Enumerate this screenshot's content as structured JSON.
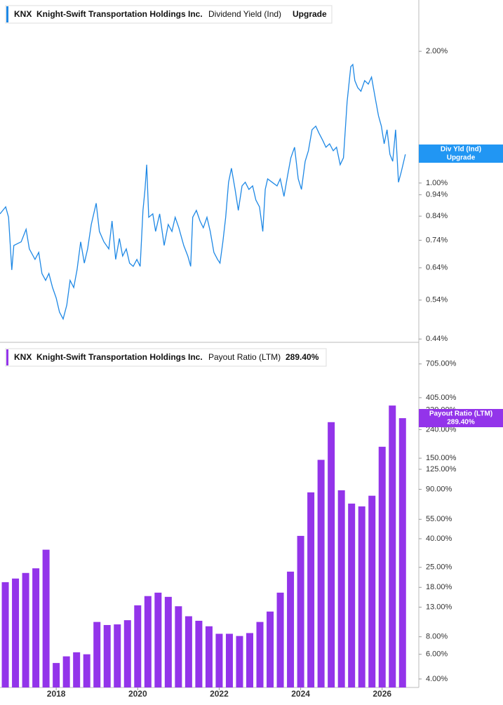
{
  "chart_data": [
    {
      "type": "line",
      "ticker": "KNX",
      "company": "Knight-Swift Transportation Holdings Inc.",
      "status": "Upgrade",
      "flag_label": "Div Yld (Ind)",
      "log_scale": true,
      "xlim": [
        2016.62,
        2026.9
      ],
      "ylim": [
        0.434,
        2.62
      ],
      "yticks": [
        {
          "value": 2,
          "label": "2.00%"
        },
        {
          "value": 1,
          "label": "1.00%"
        },
        {
          "value": 0.94,
          "label": "0.94%"
        },
        {
          "value": 0.84,
          "label": "0.84%"
        },
        {
          "value": 0.74,
          "label": "0.74%"
        },
        {
          "value": 0.64,
          "label": "0.64%"
        },
        {
          "value": 0.54,
          "label": "0.54%"
        },
        {
          "value": 0.44,
          "label": "0.44%"
        }
      ],
      "x": [
        2016.62,
        2016.76,
        2016.83,
        2016.91,
        2016.96,
        2017.14,
        2017.26,
        2017.34,
        2017.48,
        2017.57,
        2017.65,
        2017.74,
        2017.82,
        2017.91,
        2018.0,
        2018.08,
        2018.17,
        2018.26,
        2018.34,
        2018.43,
        2018.51,
        2018.6,
        2018.69,
        2018.77,
        2018.86,
        2018.98,
        2019.06,
        2019.17,
        2019.29,
        2019.37,
        2019.46,
        2019.55,
        2019.63,
        2019.72,
        2019.8,
        2019.89,
        2019.98,
        2020.06,
        2020.13,
        2020.18,
        2020.22,
        2020.27,
        2020.37,
        2020.44,
        2020.54,
        2020.65,
        2020.75,
        2020.84,
        2020.92,
        2021.01,
        2021.13,
        2021.23,
        2021.3,
        2021.35,
        2021.44,
        2021.53,
        2021.61,
        2021.7,
        2021.78,
        2021.87,
        2021.96,
        2022.02,
        2022.09,
        2022.16,
        2022.23,
        2022.3,
        2022.39,
        2022.47,
        2022.56,
        2022.64,
        2022.73,
        2022.82,
        2022.9,
        2022.99,
        2023.07,
        2023.13,
        2023.19,
        2023.3,
        2023.42,
        2023.5,
        2023.59,
        2023.68,
        2023.76,
        2023.85,
        2023.94,
        2024.02,
        2024.11,
        2024.19,
        2024.28,
        2024.37,
        2024.45,
        2024.54,
        2024.62,
        2024.71,
        2024.8,
        2024.88,
        2024.97,
        2025.05,
        2025.14,
        2025.23,
        2025.28,
        2025.33,
        2025.4,
        2025.48,
        2025.57,
        2025.66,
        2025.74,
        2025.83,
        2025.91,
        2025.98,
        2026.05,
        2026.12,
        2026.19,
        2026.26,
        2026.33,
        2026.4,
        2026.47,
        2026.53,
        2026.57
      ],
      "series": [
        {
          "name": "Dividend Yield (Ind)",
          "color": "#1e88e5",
          "values": [
            0.85,
            0.882,
            0.835,
            0.633,
            0.72,
            0.734,
            0.784,
            0.707,
            0.669,
            0.694,
            0.621,
            0.599,
            0.621,
            0.577,
            0.546,
            0.507,
            0.489,
            0.526,
            0.599,
            0.577,
            0.633,
            0.734,
            0.656,
            0.707,
            0.804,
            0.899,
            0.775,
            0.734,
            0.707,
            0.819,
            0.669,
            0.747,
            0.681,
            0.707,
            0.656,
            0.645,
            0.669,
            0.645,
            0.866,
            0.967,
            1.101,
            0.835,
            0.85,
            0.775,
            0.85,
            0.72,
            0.804,
            0.775,
            0.835,
            0.79,
            0.72,
            0.681,
            0.645,
            0.835,
            0.866,
            0.819,
            0.79,
            0.835,
            0.775,
            0.694,
            0.669,
            0.656,
            0.734,
            0.835,
            1.004,
            1.081,
            0.967,
            0.866,
            0.985,
            1.004,
            0.967,
            0.985,
            0.915,
            0.882,
            0.775,
            0.967,
            1.022,
            1.004,
            0.985,
            1.022,
            0.932,
            1.041,
            1.142,
            1.207,
            1.022,
            0.967,
            1.121,
            1.185,
            1.324,
            1.349,
            1.3,
            1.253,
            1.207,
            1.229,
            1.185,
            1.207,
            1.101,
            1.142,
            1.534,
            1.845,
            1.866,
            1.714,
            1.652,
            1.621,
            1.714,
            1.683,
            1.746,
            1.563,
            1.425,
            1.349,
            1.229,
            1.324,
            1.163,
            1.121,
            1.324,
            1.004,
            1.061,
            1.121,
            1.163
          ]
        }
      ]
    },
    {
      "type": "bar",
      "ticker": "KNX",
      "company": "Knight-Swift Transportation Holdings Inc.",
      "log_scale": true,
      "xlim": [
        2016.62,
        2026.9
      ],
      "ylim": [
        3.48,
        982
      ],
      "xticks": [
        2018,
        2020,
        2022,
        2024,
        2026
      ],
      "yticks": [
        {
          "value": 705,
          "label": "705.00%"
        },
        {
          "value": 405,
          "label": "405.00%"
        },
        {
          "value": 330,
          "label": "330.00%"
        },
        {
          "value": 240,
          "label": "240.00%"
        },
        {
          "value": 150,
          "label": "150.00%"
        },
        {
          "value": 125,
          "label": "125.00%"
        },
        {
          "value": 90,
          "label": "90.00%"
        },
        {
          "value": 55,
          "label": "55.00%"
        },
        {
          "value": 40,
          "label": "40.00%"
        },
        {
          "value": 25,
          "label": "25.00%"
        },
        {
          "value": 18,
          "label": "18.00%"
        },
        {
          "value": 13,
          "label": "13.00%"
        },
        {
          "value": 8,
          "label": "8.00%"
        },
        {
          "value": 6,
          "label": "6.00%"
        },
        {
          "value": 4,
          "label": "4.00%"
        }
      ],
      "x": [
        2016.75,
        2017,
        2017.25,
        2017.5,
        2017.75,
        2018,
        2018.25,
        2018.5,
        2018.75,
        2019,
        2019.25,
        2019.5,
        2019.75,
        2020,
        2020.25,
        2020.5,
        2020.75,
        2021,
        2021.25,
        2021.5,
        2021.75,
        2022,
        2022.25,
        2022.5,
        2022.75,
        2023,
        2023.25,
        2023.5,
        2023.75,
        2024,
        2024.25,
        2024.5,
        2024.75,
        2025,
        2025.25,
        2025.5,
        2025.75,
        2026,
        2026.25,
        2026.5
      ],
      "series": [
        {
          "name": "Payout Ratio (LTM)",
          "color": "#9334ea",
          "values": [
            19.6,
            20.8,
            22.8,
            24.6,
            33.4,
            5.2,
            5.8,
            6.2,
            6.0,
            10.2,
            9.7,
            9.8,
            10.5,
            13.4,
            15.6,
            16.5,
            15.4,
            13.2,
            11.2,
            10.4,
            9.5,
            8.4,
            8.4,
            8.1,
            8.5,
            10.2,
            12.1,
            16.5,
            23.3,
            41.9,
            85.6,
            146,
            271,
            88.6,
            71.2,
            68,
            81,
            181,
            356,
            289.4
          ],
          "value_labels": [
            null,
            null,
            null,
            null,
            null,
            null,
            null,
            null,
            null,
            null,
            null,
            null,
            null,
            null,
            null,
            null,
            null,
            null,
            null,
            null,
            null,
            null,
            null,
            null,
            null,
            null,
            null,
            null,
            null,
            null,
            null,
            null,
            null,
            null,
            null,
            null,
            null,
            null,
            null,
            "289.40%"
          ]
        }
      ]
    }
  ]
}
